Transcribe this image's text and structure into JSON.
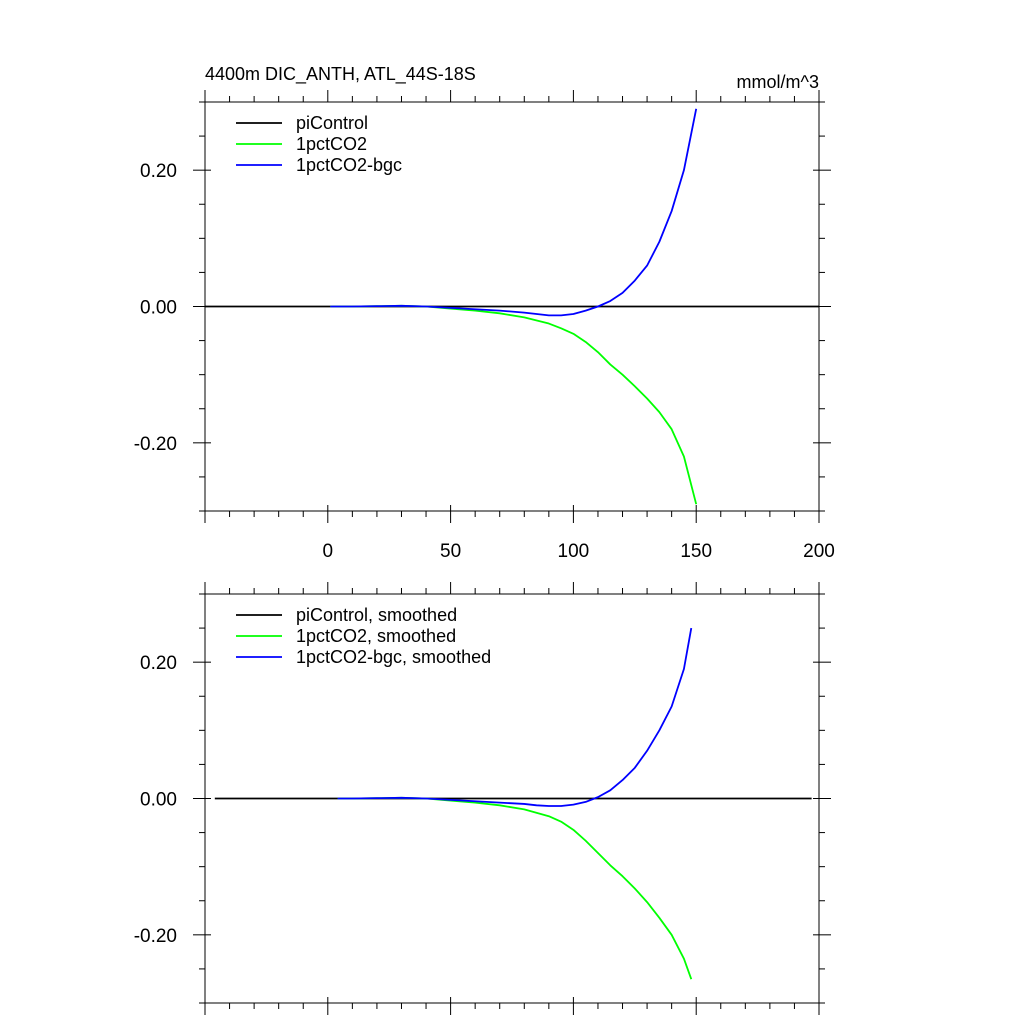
{
  "chart_data": [
    {
      "type": "line",
      "title": "4400m DIC_ANTH, ATL_44S-18S",
      "units": "mmol/m^3",
      "xlim": [
        -50,
        200
      ],
      "ylim": [
        -0.3,
        0.3
      ],
      "xticks": [
        0,
        50,
        100,
        150,
        200
      ],
      "xtick_labels": [
        "0",
        "50",
        "100",
        "150",
        "200"
      ],
      "yticks": [
        -0.2,
        0,
        0.2
      ],
      "ytick_labels": [
        "-0.20",
        "0.00",
        "0.20"
      ],
      "legend_position": "top-left",
      "series": [
        {
          "name": "piControl",
          "color": "#000000",
          "x": [
            -50,
            200
          ],
          "y": [
            0,
            0
          ]
        },
        {
          "name": "1pctCO2",
          "color": "#00ff00",
          "x": [
            1,
            10,
            20,
            30,
            40,
            50,
            60,
            70,
            80,
            90,
            95,
            100,
            105,
            110,
            115,
            120,
            125,
            130,
            135,
            140,
            145,
            150
          ],
          "y": [
            0,
            0,
            0.0005,
            0.001,
            0,
            -0.003,
            -0.006,
            -0.01,
            -0.016,
            -0.025,
            -0.032,
            -0.04,
            -0.052,
            -0.067,
            -0.085,
            -0.1,
            -0.117,
            -0.135,
            -0.155,
            -0.18,
            -0.22,
            -0.29
          ]
        },
        {
          "name": "1pctCO2-bgc",
          "color": "#0000ff",
          "x": [
            1,
            10,
            20,
            30,
            40,
            50,
            60,
            70,
            80,
            85,
            90,
            95,
            100,
            105,
            110,
            115,
            120,
            125,
            130,
            135,
            140,
            145,
            150
          ],
          "y": [
            0,
            0,
            0.0005,
            0.001,
            0,
            -0.002,
            -0.004,
            -0.006,
            -0.009,
            -0.011,
            -0.013,
            -0.013,
            -0.011,
            -0.006,
            0,
            0.008,
            0.02,
            0.038,
            0.06,
            0.095,
            0.14,
            0.2,
            0.29
          ]
        }
      ]
    },
    {
      "type": "line",
      "xlim": [
        -50,
        200
      ],
      "ylim": [
        -0.3,
        0.3
      ],
      "xticks": [
        0,
        50,
        100,
        150,
        200
      ],
      "yticks": [
        -0.2,
        0,
        0.2
      ],
      "ytick_labels": [
        "-0.20",
        "0.00",
        "0.20"
      ],
      "legend_position": "top-left",
      "series": [
        {
          "name": "piControl, smoothed",
          "color": "#000000",
          "x": [
            -46,
            197
          ],
          "y": [
            0,
            0
          ]
        },
        {
          "name": "1pctCO2, smoothed",
          "color": "#00ff00",
          "x": [
            4,
            10,
            20,
            30,
            40,
            50,
            60,
            70,
            80,
            90,
            95,
            100,
            105,
            110,
            115,
            120,
            125,
            130,
            135,
            140,
            145,
            148
          ],
          "y": [
            0,
            0,
            0.0005,
            0.001,
            0,
            -0.003,
            -0.006,
            -0.01,
            -0.016,
            -0.026,
            -0.034,
            -0.046,
            -0.062,
            -0.08,
            -0.098,
            -0.114,
            -0.132,
            -0.152,
            -0.175,
            -0.2,
            -0.235,
            -0.265
          ]
        },
        {
          "name": "1pctCO2-bgc, smoothed",
          "color": "#0000ff",
          "x": [
            4,
            10,
            20,
            30,
            40,
            50,
            60,
            70,
            80,
            85,
            90,
            95,
            100,
            105,
            110,
            115,
            120,
            125,
            130,
            135,
            140,
            145,
            148
          ],
          "y": [
            0,
            0,
            0.0005,
            0.001,
            0,
            -0.002,
            -0.004,
            -0.006,
            -0.008,
            -0.01,
            -0.011,
            -0.011,
            -0.009,
            -0.005,
            0.002,
            0.012,
            0.027,
            0.045,
            0.07,
            0.1,
            0.135,
            0.19,
            0.25
          ]
        }
      ]
    }
  ]
}
